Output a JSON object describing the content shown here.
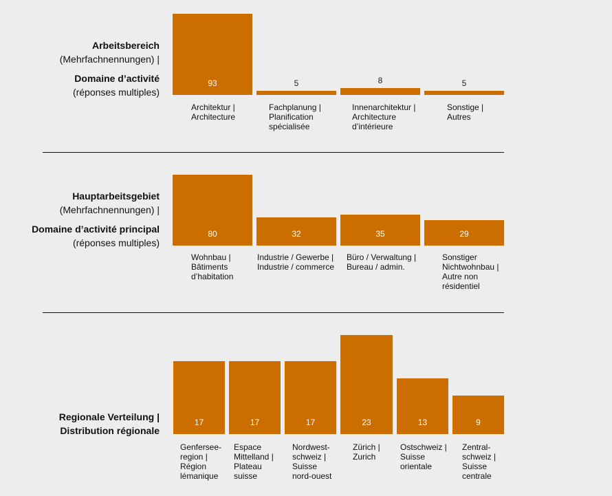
{
  "chart_data": [
    {
      "type": "bar",
      "label_lines": [
        {
          "text": "Arbeitsbereich",
          "bold": true
        },
        {
          "text": "(Mehrfachnennungen) |",
          "bold": false
        },
        {
          "text": "Domaine d’activité",
          "bold": true,
          "gap_before": true
        },
        {
          "text": "(réponses multiples)",
          "bold": false
        }
      ],
      "categories": [
        "Architektur |\nArchitecture",
        "Fachplanung |\nPlanification\nspécialisée",
        "Innenarchitektur |\nArchitecture\nd’intérieure",
        "Sonstige |\nAutres"
      ],
      "values": [
        93,
        5,
        8,
        5
      ],
      "color": "#cc6d00"
    },
    {
      "type": "bar",
      "label_lines": [
        {
          "text": "Hauptarbeitsgebiet",
          "bold": true
        },
        {
          "text": "(Mehrfachnennungen) |",
          "bold": false
        },
        {
          "text": "Domaine d’activité principal",
          "bold": true,
          "gap_before": true
        },
        {
          "text": "(réponses multiples)",
          "bold": false
        }
      ],
      "categories": [
        "Wohnbau |\nBâtiments\nd’habitation",
        "Industrie / Gewerbe |\nIndustrie / commerce",
        "Büro / Verwaltung |\nBureau / admin.",
        "Sonstiger\nNichtwohnbau |\nAutre non\nrésidentiel"
      ],
      "values": [
        80,
        32,
        35,
        29
      ],
      "color": "#cc6d00"
    },
    {
      "type": "bar",
      "label_lines": [
        {
          "text": "Regionale Verteilung |",
          "bold": true
        },
        {
          "text": "Distribution régionale",
          "bold": true
        }
      ],
      "categories": [
        "Genfersee-\nregion |\nRégion\nlémanique",
        "Espace\nMittelland |\nPlateau\nsuisse",
        "Nordwest-\nschweiz |\nSuisse\nnord-ouest",
        "Zürich |\nZurich",
        "Ostschweiz |\nSuisse\norientale",
        "Zentral-\nschweiz |\nSuisse\ncentrale"
      ],
      "values": [
        17,
        17,
        17,
        23,
        13,
        9
      ],
      "color": "#cc6d00"
    }
  ]
}
